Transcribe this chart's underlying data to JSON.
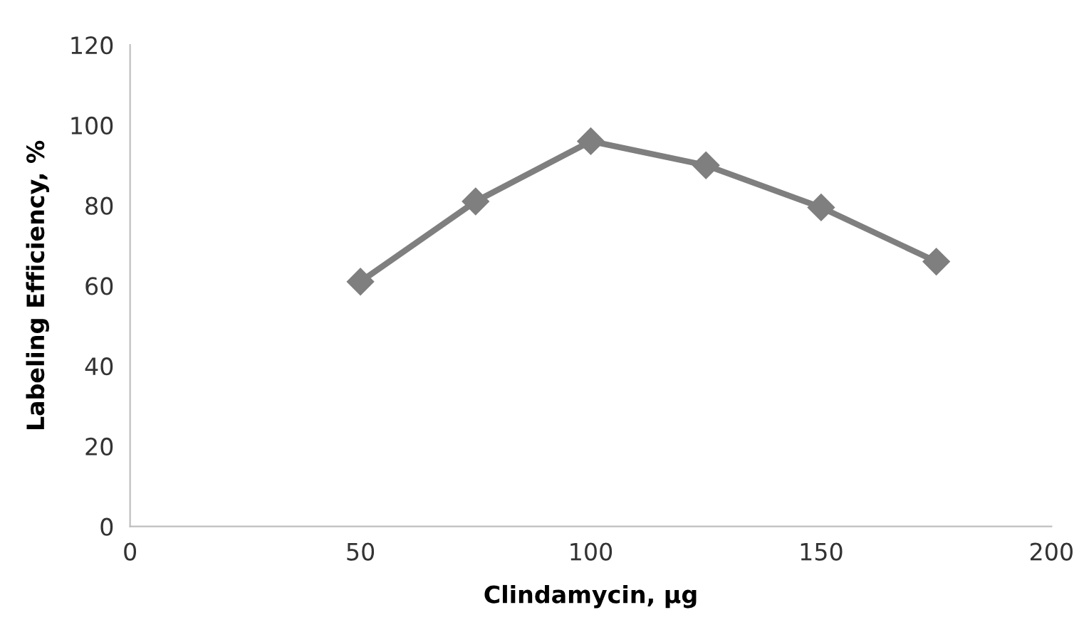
{
  "chart_data": {
    "type": "line",
    "xlabel": "Clindamycin, µg",
    "ylabel": "Labeling Efficiency, %",
    "x": [
      50,
      75,
      100,
      125,
      150,
      175
    ],
    "series": [
      {
        "color": "#7f7f7f",
        "values": [
          61,
          81,
          96,
          90,
          79.5,
          66
        ]
      }
    ],
    "xlim": [
      0,
      200
    ],
    "xticks": [
      0,
      50,
      100,
      150,
      200
    ],
    "ylim": [
      0,
      120
    ],
    "yticks": [
      0,
      20,
      40,
      60,
      80,
      100,
      120
    ],
    "grid": false,
    "legend": false,
    "marker": "diamond",
    "line_style": "solid"
  }
}
